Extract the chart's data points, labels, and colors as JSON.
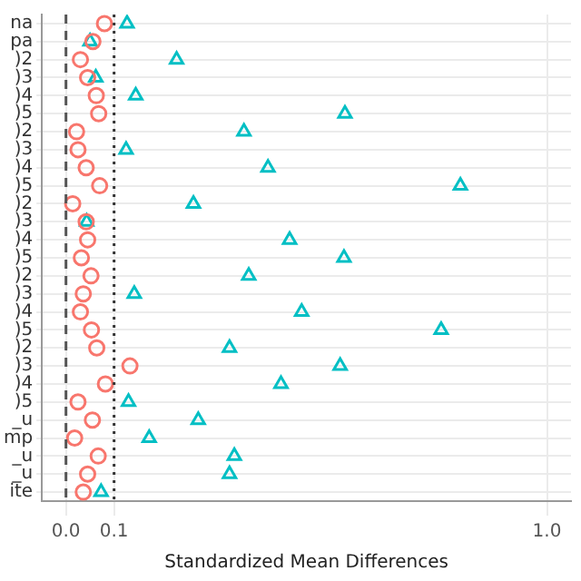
{
  "chart_data": {
    "type": "scatter",
    "xlabel": "Standardized Mean Differences",
    "categories": [
      "na",
      "pa",
      ")2",
      ")3",
      ")4",
      ")5",
      ")2",
      ")3",
      ")4",
      ")5",
      ")2",
      ")3",
      ")4",
      ")5",
      ")2",
      ")3",
      ")4",
      ")5",
      ")2",
      ")3",
      ")4",
      ")5",
      "_u",
      "mp",
      "_u",
      "_u",
      "ite"
    ],
    "series": [
      {
        "color": "#f8766d",
        "marker": "circle",
        "values": [
          0.08,
          0.056,
          0.03,
          0.045,
          0.063,
          0.068,
          0.022,
          0.025,
          0.042,
          0.07,
          0.014,
          0.042,
          0.045,
          0.032,
          0.052,
          0.036,
          0.03,
          0.053,
          0.064,
          0.133,
          0.082,
          0.025,
          0.055,
          0.018,
          0.067,
          0.045,
          0.036
        ]
      },
      {
        "color": "#00bfc4",
        "marker": "triangle",
        "values": [
          0.127,
          0.05,
          0.23,
          0.062,
          0.145,
          0.58,
          0.37,
          0.125,
          0.42,
          0.82,
          0.265,
          0.043,
          0.465,
          0.578,
          0.38,
          0.142,
          0.49,
          0.78,
          0.34,
          0.57,
          0.447,
          0.13,
          0.275,
          0.173,
          0.35,
          0.34,
          0.073
        ]
      }
    ],
    "orientation": "horizontal",
    "xlim": [
      -0.05,
      1.05
    ],
    "xticks": [
      {
        "value": 0,
        "label": "0.0"
      },
      {
        "value": 0.1,
        "label": "0.1"
      },
      {
        "value": 1,
        "label": "1.0"
      }
    ],
    "ref_lines": [
      {
        "axis": "x",
        "value": 0,
        "line_style": "dashed",
        "color": "#555555"
      },
      {
        "axis": "x",
        "value": 0.1,
        "line_style": "dotted",
        "color": "#333333"
      }
    ],
    "grid": true,
    "legend": false
  }
}
